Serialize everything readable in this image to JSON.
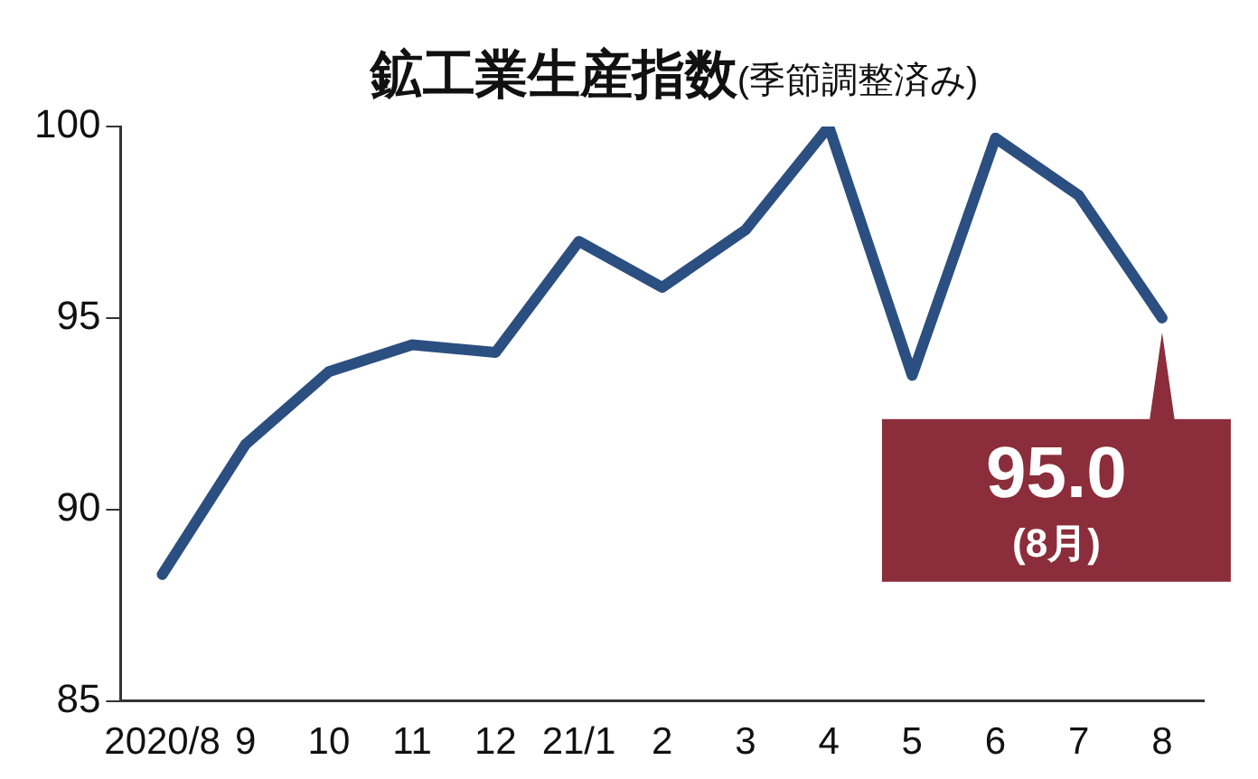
{
  "chart_data": {
    "type": "line",
    "title": "鉱工業生産指数",
    "subtitle": "(季節調整済み)",
    "categories": [
      "2020/8",
      "9",
      "10",
      "11",
      "12",
      "21/1",
      "2",
      "3",
      "4",
      "5",
      "6",
      "7",
      "8"
    ],
    "series": [
      {
        "color": "#2b4f80",
        "values": [
          88.3,
          91.7,
          93.6,
          94.3,
          94.1,
          97.0,
          95.8,
          97.3,
          100.0,
          93.5,
          99.7,
          98.2,
          95.0
        ]
      }
    ],
    "ylim": [
      85,
      100
    ],
    "yticks": [
      85,
      90,
      95,
      100
    ],
    "grid": false,
    "legend": false,
    "marker": "none",
    "line_style": "solid",
    "annotations": [
      {
        "text": "95.0",
        "x": "8",
        "y": 95.0
      },
      "(8月)"
    ]
  }
}
